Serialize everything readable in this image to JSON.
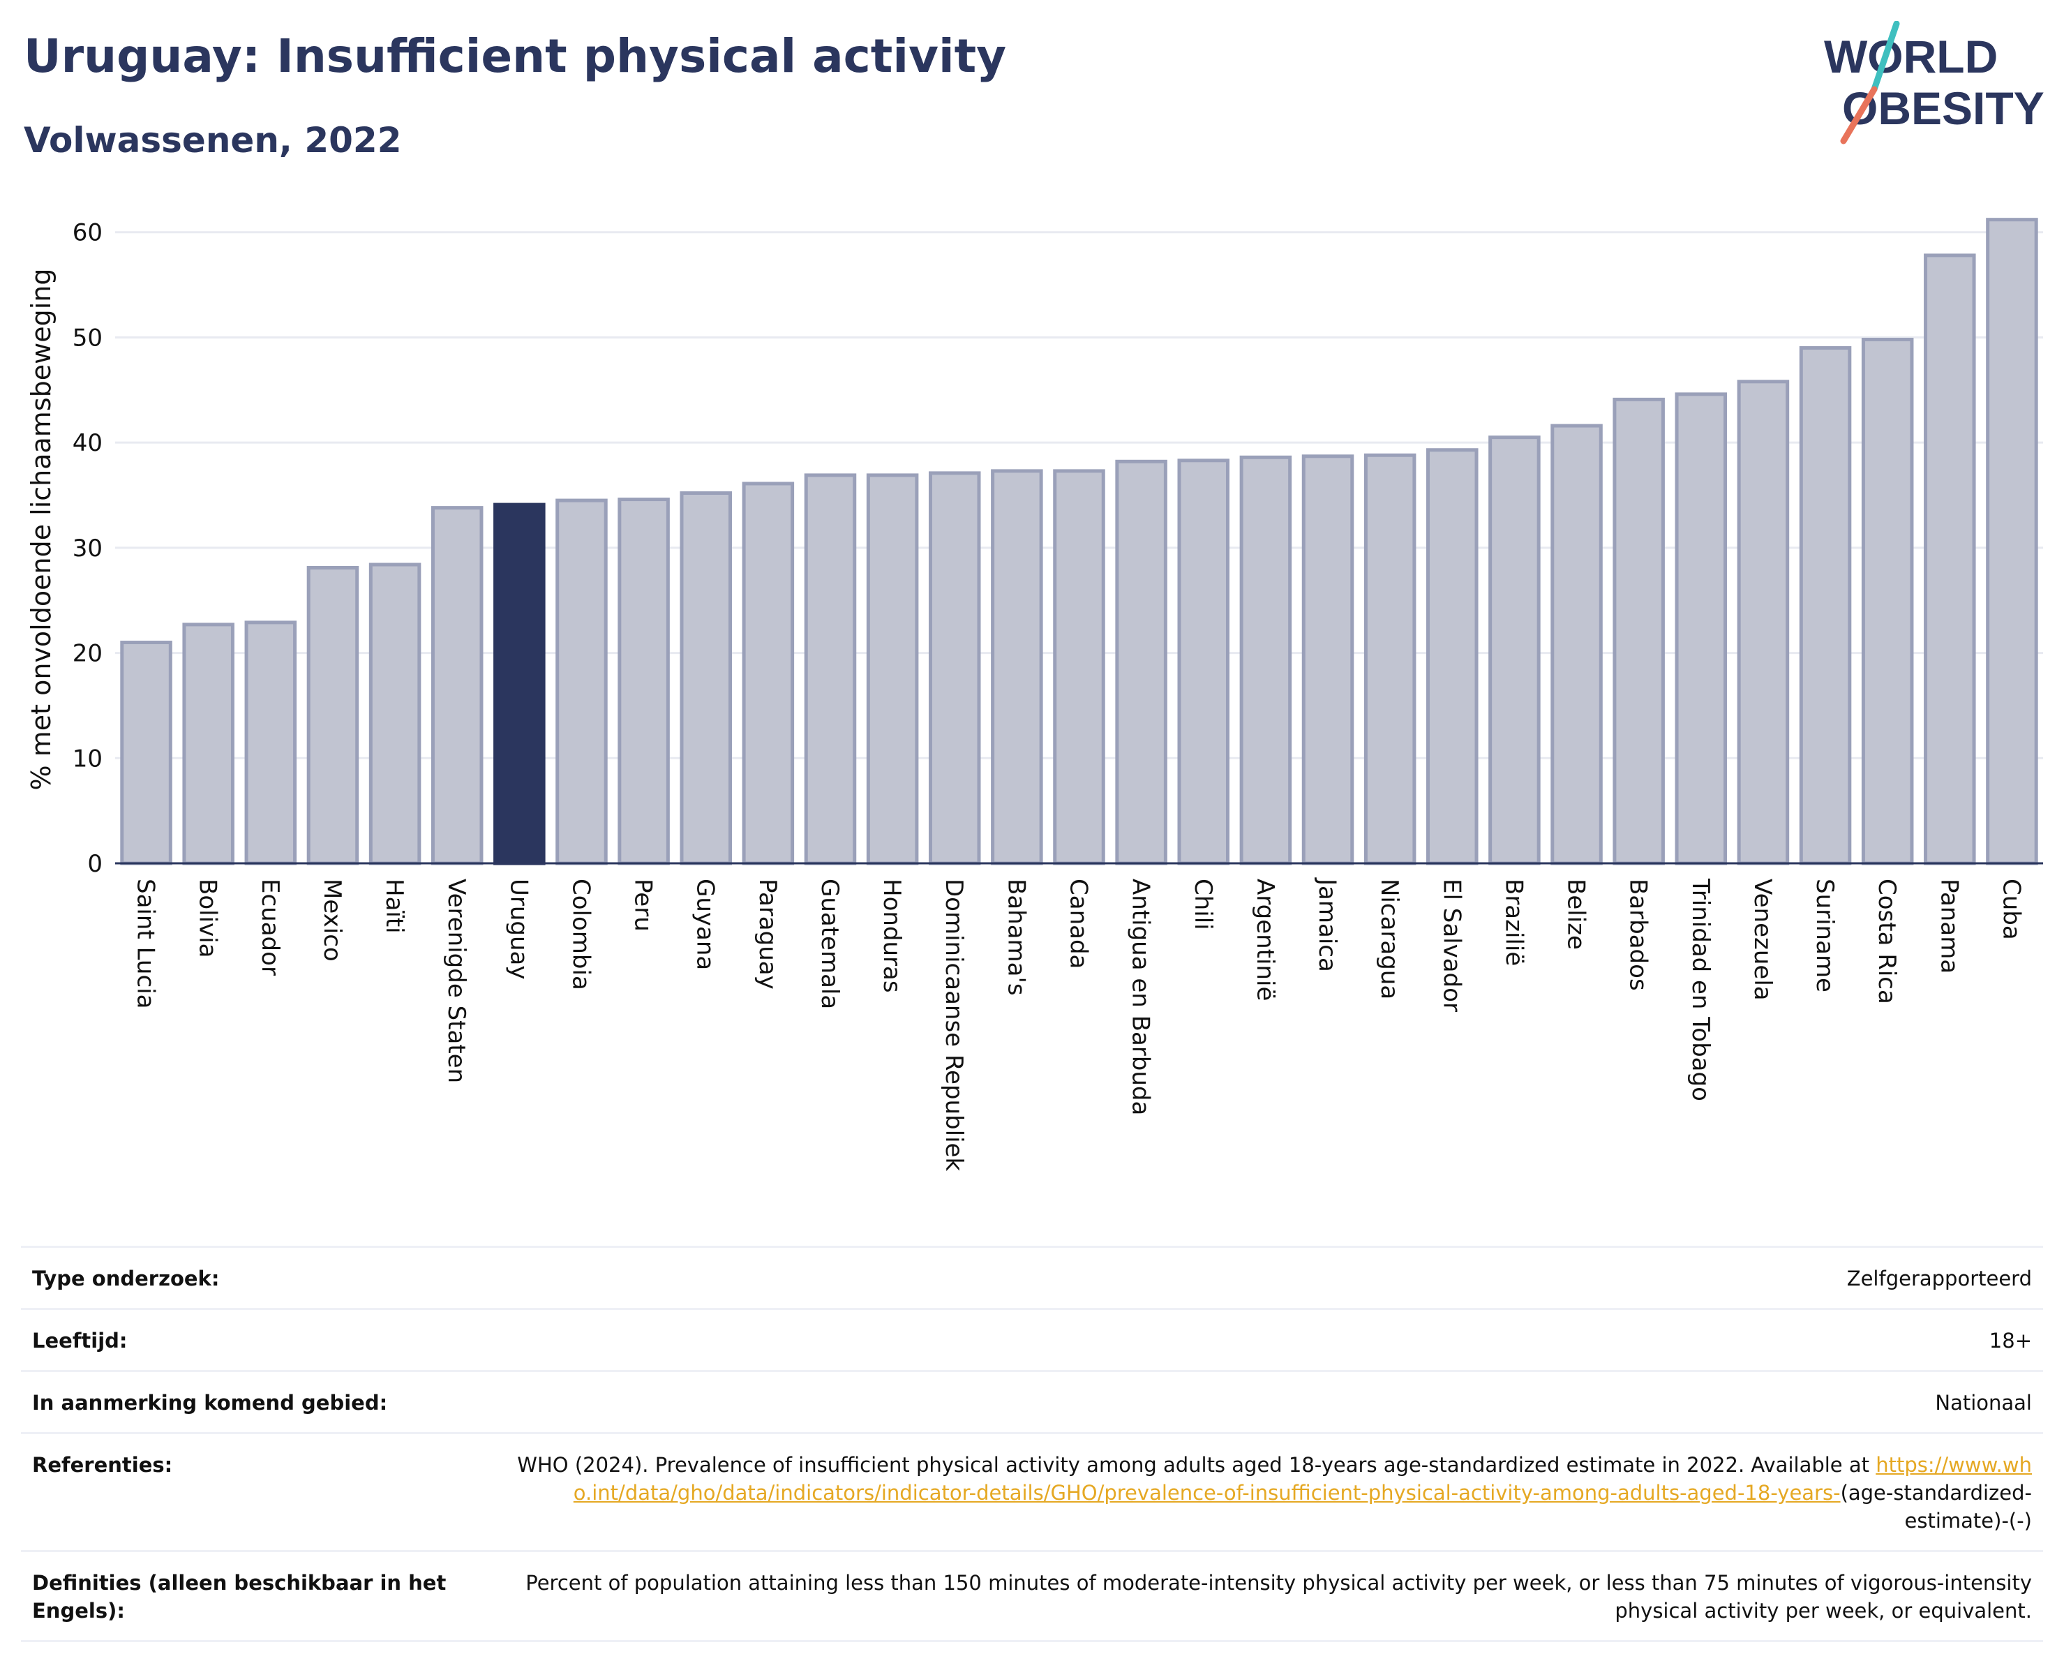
{
  "header": {
    "title": "Uruguay: Insufficient physical activity",
    "subtitle": "Volwassenen, 2022"
  },
  "logo": {
    "line1": "WORLD",
    "line2": "OBESITY",
    "icon": "world-obesity-logo"
  },
  "colors": {
    "highlight_bar": "#2b365e",
    "other_bar_fill": "#c1c4d1",
    "other_bar_stroke": "#9aa0b9",
    "grid": "#e8eaf1",
    "axis_text": "#111111",
    "logo_teal": "#3fbfbf",
    "logo_coral": "#e8735a"
  },
  "chart_data": {
    "type": "bar",
    "title": "",
    "xlabel": "",
    "ylabel": "% met onvoldoende lichaamsbeweging",
    "ylim": [
      0,
      63.5
    ],
    "yticks": [
      0,
      10,
      20,
      30,
      40,
      50,
      60
    ],
    "grid": true,
    "highlight": "Uruguay",
    "categories": [
      "Saint Lucia",
      "Bolivia",
      "Ecuador",
      "Mexico",
      "Haïti",
      "Verenigde Staten",
      "Uruguay",
      "Colombia",
      "Peru",
      "Guyana",
      "Paraguay",
      "Guatemala",
      "Honduras",
      "Dominicaanse Republiek",
      "Bahama's",
      "Canada",
      "Antigua en Barbuda",
      "Chili",
      "Argentinië",
      "Jamaica",
      "Nicaragua",
      "El Salvador",
      "Brazilië",
      "Belize",
      "Barbados",
      "Trinidad en Tobago",
      "Venezuela",
      "Suriname",
      "Costa Rica",
      "Panama",
      "Cuba"
    ],
    "values": [
      21.0,
      22.7,
      22.9,
      28.1,
      28.4,
      33.8,
      34.1,
      34.5,
      34.6,
      35.2,
      36.1,
      36.9,
      36.9,
      37.1,
      37.3,
      37.3,
      38.2,
      38.3,
      38.6,
      38.7,
      38.8,
      39.3,
      40.5,
      41.6,
      44.1,
      44.6,
      45.8,
      49.0,
      49.8,
      57.8,
      61.2
    ]
  },
  "info": {
    "rows": [
      {
        "label": "Type onderzoek:",
        "value": "Zelfgerapporteerd"
      },
      {
        "label": "Leeftijd:",
        "value": "18+"
      },
      {
        "label": "In aanmerking komend gebied:",
        "value": "Nationaal"
      }
    ],
    "references": {
      "label": "Referenties:",
      "text": "WHO (2024). Prevalence of insufficient physical activity among adults aged 18-years age-standardized estimate in 2022. Available at",
      "link": "https://www.who.int/data/gho/data/indicators/indicator-details/GHO/prevalence-of-insufficient-physical-activity-among-adults-aged-18-years-",
      "suffix": "(age-standardized-estimate)-(-)"
    },
    "definitions": {
      "label": "Definities (alleen beschikbaar in het Engels):",
      "value": "Percent of population attaining less than 150 minutes of moderate-intensity physical activity per week, or less than 75 minutes of vigorous-intensity physical activity per week, or equivalent."
    }
  }
}
